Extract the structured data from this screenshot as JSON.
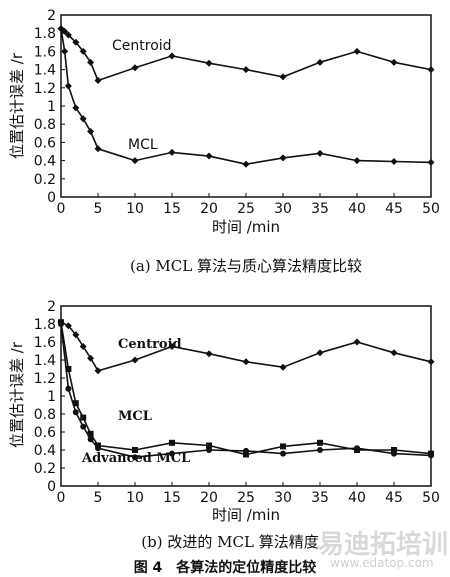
{
  "chart_data": [
    {
      "type": "line",
      "caption": "(a) MCL 算法与质心算法精度比较",
      "xlabel": "时间 /min",
      "ylabel": "位置估计误差 /r",
      "xlim": [
        0,
        50
      ],
      "ylim": [
        0,
        2
      ],
      "xticks": [
        0,
        5,
        10,
        15,
        20,
        25,
        30,
        35,
        40,
        45,
        50
      ],
      "yticks": [
        0,
        0.2,
        0.4,
        0.6,
        0.8,
        1,
        1.2,
        1.4,
        1.6,
        1.8,
        2
      ],
      "series": [
        {
          "name": "Centroid",
          "marker": "diamond",
          "x": [
            0,
            0.5,
            1,
            2,
            3,
            4,
            5,
            10,
            15,
            20,
            25,
            30,
            35,
            40,
            45,
            50
          ],
          "y": [
            1.85,
            1.82,
            1.78,
            1.7,
            1.6,
            1.48,
            1.28,
            1.42,
            1.55,
            1.47,
            1.4,
            1.32,
            1.48,
            1.6,
            1.48,
            1.4
          ]
        },
        {
          "name": "MCL",
          "marker": "diamond",
          "x": [
            0,
            0.5,
            1,
            2,
            3,
            4,
            5,
            10,
            15,
            20,
            25,
            30,
            35,
            40,
            45,
            50
          ],
          "y": [
            1.85,
            1.6,
            1.22,
            0.98,
            0.86,
            0.72,
            0.53,
            0.4,
            0.49,
            0.45,
            0.36,
            0.43,
            0.48,
            0.4,
            0.39,
            0.38
          ]
        }
      ]
    },
    {
      "type": "line",
      "caption": "(b) 改进的 MCL 算法精度",
      "xlabel": "时间 /min",
      "ylabel": "位置估计误差 /r",
      "xlim": [
        0,
        50
      ],
      "ylim": [
        0,
        2
      ],
      "xticks": [
        0,
        5,
        10,
        15,
        20,
        25,
        30,
        35,
        40,
        45,
        50
      ],
      "yticks": [
        0,
        0.2,
        0.4,
        0.6,
        0.8,
        1,
        1.2,
        1.4,
        1.6,
        1.8,
        2
      ],
      "series": [
        {
          "name": "Centroid",
          "marker": "diamond",
          "x": [
            0,
            1,
            2,
            3,
            4,
            5,
            10,
            15,
            20,
            25,
            30,
            35,
            40,
            45,
            50
          ],
          "y": [
            1.82,
            1.78,
            1.68,
            1.55,
            1.42,
            1.28,
            1.4,
            1.55,
            1.47,
            1.38,
            1.32,
            1.48,
            1.6,
            1.48,
            1.38
          ]
        },
        {
          "name": "MCL",
          "marker": "square",
          "x": [
            0,
            1,
            2,
            3,
            4,
            5,
            10,
            15,
            20,
            25,
            30,
            35,
            40,
            45,
            50
          ],
          "y": [
            1.82,
            1.3,
            0.92,
            0.76,
            0.58,
            0.45,
            0.4,
            0.48,
            0.45,
            0.35,
            0.44,
            0.48,
            0.4,
            0.4,
            0.36
          ]
        },
        {
          "name": "Advanced MCL",
          "marker": "circle",
          "x": [
            0,
            1,
            2,
            3,
            4,
            5,
            10,
            15,
            20,
            25,
            30,
            35,
            40,
            45,
            50
          ],
          "y": [
            1.8,
            1.08,
            0.82,
            0.66,
            0.52,
            0.42,
            0.32,
            0.36,
            0.4,
            0.39,
            0.36,
            0.4,
            0.42,
            0.36,
            0.34
          ]
        }
      ]
    }
  ],
  "figure_caption": "图 4　各算法的定位精度比较",
  "watermark": "易迪拓培训",
  "watermark_url": "www.edatop.com"
}
